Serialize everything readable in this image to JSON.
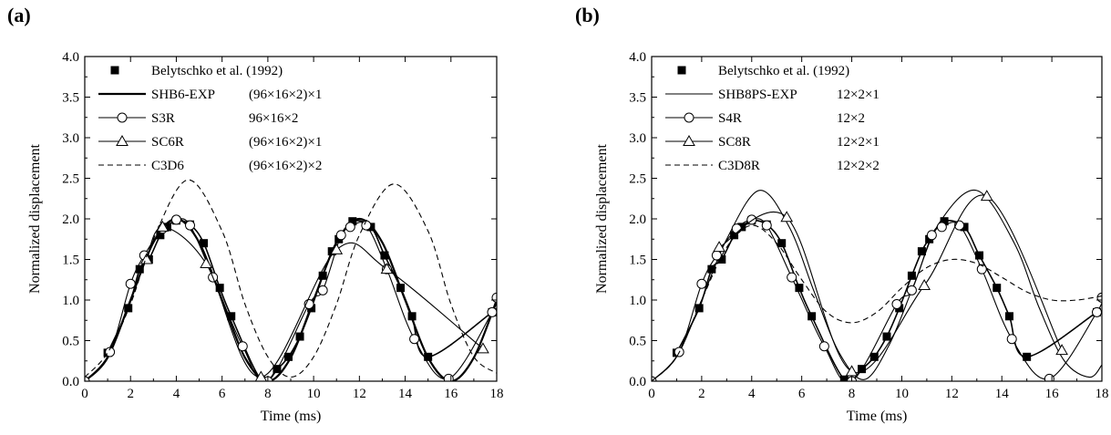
{
  "chart_data": [
    {
      "panel_label": "(a)",
      "type": "line",
      "xlabel": "Time (ms)",
      "ylabel": "Normalized displacement",
      "xlim": [
        0,
        18
      ],
      "ylim": [
        0,
        4.0
      ],
      "xticks": [
        "0",
        "2",
        "4",
        "6",
        "8",
        "10",
        "12",
        "14",
        "16",
        "18"
      ],
      "yticks": [
        "0.0",
        "0.5",
        "1.0",
        "1.5",
        "2.0",
        "2.5",
        "3.0",
        "3.5",
        "4.0"
      ],
      "legend_position": "top-left",
      "series": [
        {
          "name": "Belytschko et al. (1992)",
          "mesh": "",
          "style": "square-markers",
          "x": [
            1.0,
            1.9,
            2.4,
            2.8,
            3.3,
            3.6,
            4.0,
            4.6,
            5.2,
            5.9,
            6.4,
            7.7,
            8.4,
            8.9,
            9.4,
            9.9,
            10.4,
            10.8,
            11.1,
            11.7,
            12.5,
            13.1,
            13.8,
            14.3,
            15.0,
            17.8
          ],
          "y": [
            0.35,
            0.9,
            1.38,
            1.5,
            1.8,
            1.9,
            1.98,
            1.93,
            1.7,
            1.15,
            0.8,
            0.02,
            0.15,
            0.3,
            0.55,
            0.9,
            1.3,
            1.6,
            1.75,
            1.97,
            1.9,
            1.55,
            1.15,
            0.8,
            0.3,
            0.85
          ]
        },
        {
          "name": "SHB6-EXP",
          "mesh": "(96×16×2)×1",
          "style": "thick-solid",
          "x": [
            0,
            1,
            2,
            3,
            4,
            5,
            6,
            7,
            8,
            9,
            10,
            11,
            12,
            13,
            14,
            15,
            16,
            17,
            18
          ],
          "y": [
            0,
            0.29,
            1.0,
            1.71,
            2.0,
            1.71,
            1.0,
            0.29,
            0,
            0.29,
            1.0,
            1.71,
            2.0,
            1.71,
            1.0,
            0.29,
            0,
            0.29,
            1.0
          ]
        },
        {
          "name": "S3R",
          "mesh": "96×16×2",
          "style": "circle-markers",
          "x": [
            0,
            1.1,
            2.0,
            2.6,
            3.4,
            4.0,
            4.6,
            5.6,
            6.9,
            8.0,
            9.8,
            10.4,
            11.2,
            11.6,
            12.3,
            13.2,
            14.4,
            15.9,
            17.8,
            18.0
          ],
          "y": [
            0,
            0.36,
            1.2,
            1.55,
            1.88,
            1.99,
            1.92,
            1.28,
            0.43,
            0.0,
            0.95,
            1.12,
            1.8,
            1.9,
            1.92,
            1.38,
            0.52,
            0.03,
            0.85,
            1.03
          ]
        },
        {
          "name": "SC6R",
          "mesh": "(96×16×2)×1",
          "style": "triangle-markers",
          "x": [
            2.7,
            3.4,
            5.3,
            7.7,
            11.0,
            13.2,
            17.4
          ],
          "y": [
            1.5,
            1.9,
            1.45,
            0.05,
            1.62,
            1.38,
            0.4
          ]
        },
        {
          "name": "C3D6",
          "mesh": "(96×16×2)×2",
          "style": "dashed",
          "x": [
            0,
            1,
            2,
            3,
            4.5,
            6,
            7,
            8,
            9,
            10,
            11,
            12,
            13.5,
            15,
            16,
            17,
            18
          ],
          "y": [
            0.05,
            0.35,
            0.95,
            1.75,
            2.48,
            1.85,
            0.95,
            0.3,
            0.05,
            0.3,
            0.95,
            1.8,
            2.43,
            1.85,
            0.95,
            0.3,
            0.1
          ]
        }
      ]
    },
    {
      "panel_label": "(b)",
      "type": "line",
      "xlabel": "Time (ms)",
      "ylabel": "Normalized displacement",
      "xlim": [
        0,
        18
      ],
      "ylim": [
        0,
        4.0
      ],
      "xticks": [
        "0",
        "2",
        "4",
        "6",
        "8",
        "10",
        "12",
        "14",
        "16",
        "18"
      ],
      "yticks": [
        "0.0",
        "0.5",
        "1.0",
        "1.5",
        "2.0",
        "2.5",
        "3.0",
        "3.5",
        "4.0"
      ],
      "legend_position": "top-left",
      "series": [
        {
          "name": "Belytschko et al. (1992)",
          "mesh": "",
          "style": "square-markers",
          "x": [
            1.0,
            1.9,
            2.4,
            2.8,
            3.3,
            3.6,
            4.0,
            4.6,
            5.2,
            5.9,
            6.4,
            7.7,
            8.4,
            8.9,
            9.4,
            9.9,
            10.4,
            10.8,
            11.1,
            11.7,
            12.5,
            13.1,
            13.8,
            14.3,
            15.0,
            17.8
          ],
          "y": [
            0.35,
            0.9,
            1.38,
            1.5,
            1.8,
            1.9,
            1.98,
            1.93,
            1.7,
            1.15,
            0.8,
            0.02,
            0.15,
            0.3,
            0.55,
            0.9,
            1.3,
            1.6,
            1.75,
            1.97,
            1.9,
            1.55,
            1.15,
            0.8,
            0.3,
            0.85
          ]
        },
        {
          "name": "SHB8PS-EXP",
          "mesh": "12×2×1",
          "style": "thin-solid",
          "x": [
            0,
            1,
            2,
            3,
            4.3,
            5.5,
            6.5,
            7.5,
            8.5,
            9.5,
            10.5,
            11.5,
            13.0,
            14.5,
            15.5,
            16.5,
            17.5,
            18.0
          ],
          "y": [
            0,
            0.3,
            1.0,
            1.75,
            2.35,
            1.9,
            1.1,
            0.35,
            0.02,
            0.45,
            1.2,
            1.95,
            2.35,
            1.7,
            0.9,
            0.25,
            0.05,
            0.2
          ]
        },
        {
          "name": "S4R",
          "mesh": "12×2",
          "style": "circle-markers",
          "x": [
            0,
            1.1,
            2.0,
            2.6,
            3.4,
            4.0,
            4.6,
            5.6,
            6.9,
            8.0,
            9.8,
            10.4,
            11.2,
            11.6,
            12.3,
            13.2,
            14.4,
            15.9,
            17.8,
            18.0
          ],
          "y": [
            0,
            0.36,
            1.2,
            1.55,
            1.88,
            1.99,
            1.92,
            1.28,
            0.43,
            0.0,
            0.95,
            1.12,
            1.8,
            1.9,
            1.92,
            1.38,
            0.52,
            0.03,
            0.85,
            1.03
          ]
        },
        {
          "name": "SC8R",
          "mesh": "12×2×1",
          "style": "triangle-markers",
          "x": [
            2.7,
            5.4,
            8.0,
            10.9,
            13.4,
            16.4
          ],
          "y": [
            1.65,
            2.02,
            0.12,
            1.18,
            2.28,
            0.38
          ]
        },
        {
          "name": "C3D8R",
          "mesh": "12×2×2",
          "style": "dashed",
          "x": [
            0,
            1,
            2,
            3,
            4,
            5,
            6,
            7,
            8,
            9,
            10,
            11,
            12,
            13,
            14,
            15,
            16,
            17,
            18
          ],
          "y": [
            0,
            0.3,
            1.0,
            1.65,
            1.92,
            1.7,
            1.25,
            0.85,
            0.72,
            0.85,
            1.15,
            1.4,
            1.5,
            1.45,
            1.28,
            1.1,
            1.0,
            1.0,
            1.05
          ]
        }
      ]
    }
  ]
}
